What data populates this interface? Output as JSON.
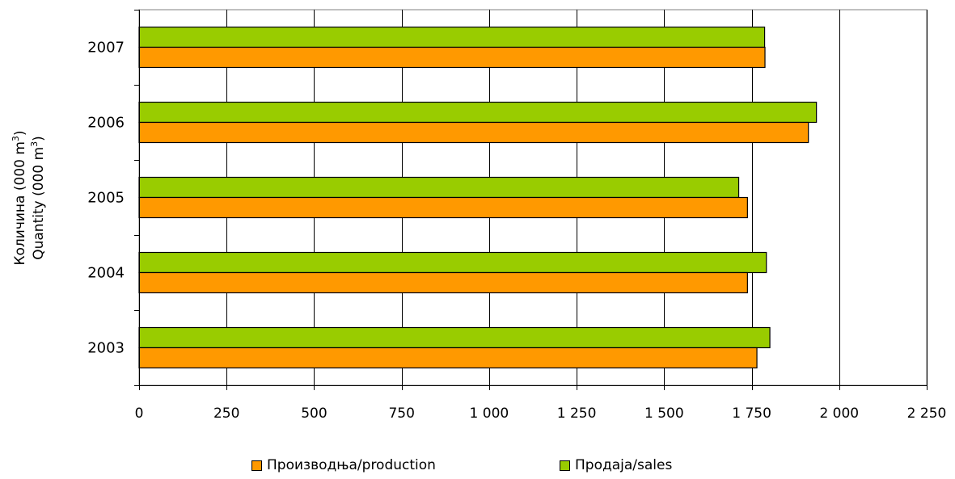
{
  "chart_data": {
    "type": "bar",
    "orientation": "horizontal",
    "categories": [
      "2003",
      "2004",
      "2005",
      "2006",
      "2007"
    ],
    "series": [
      {
        "name": "Производња/production",
        "color": "#FF9900",
        "values": [
          1765,
          1738,
          1738,
          1912,
          1788
        ]
      },
      {
        "name": "Продаја/sales",
        "color": "#99CC00",
        "values": [
          1802,
          1792,
          1713,
          1935,
          1787
        ]
      }
    ],
    "xlim": [
      0,
      2250
    ],
    "x_ticks": [
      "0",
      "250",
      "500",
      "750",
      "1 000",
      "1 250",
      "1 500",
      "1 750",
      "2 000",
      "2 250"
    ],
    "x_tick_values": [
      0,
      250,
      500,
      750,
      1000,
      1250,
      1500,
      1750,
      2000,
      2250
    ],
    "ylabel_line1": "Количина (000 m",
    "ylabel_line2": "Quantity (000 m",
    "ylabel_superscript": "3",
    "ylabel_close": ")",
    "grid": "vertical",
    "legend_position": "bottom"
  }
}
